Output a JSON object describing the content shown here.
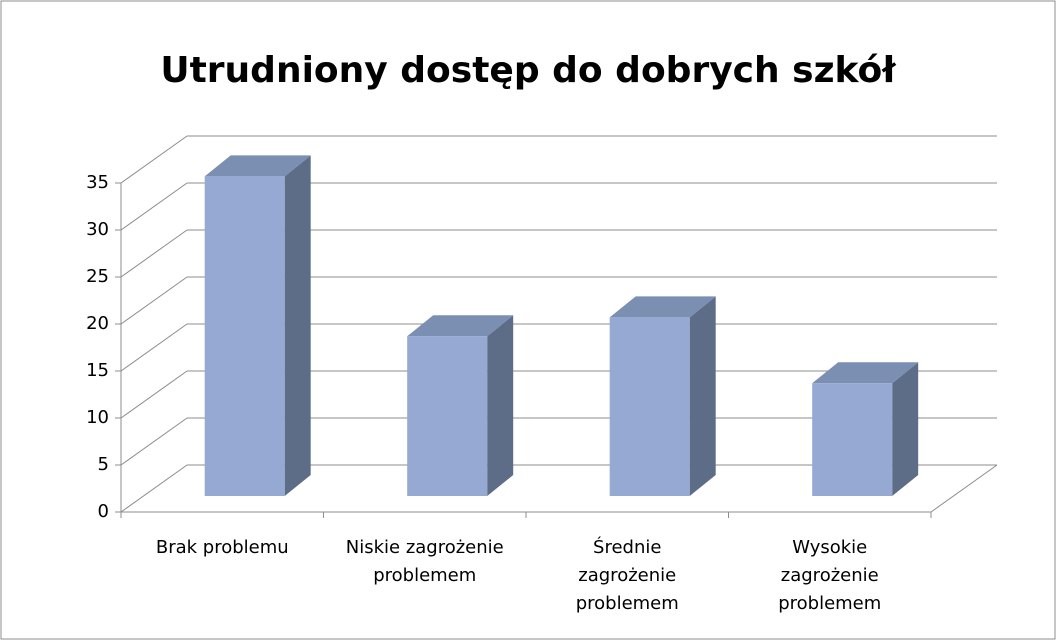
{
  "chart_data": {
    "type": "bar3d",
    "title": "Utrudniony dostęp do dobrych szkół",
    "categories": [
      "Brak problemu",
      "Niskie zagrożenie problemem",
      "Średnie zagrożenie problemem",
      "Wysokie zagrożenie problemem"
    ],
    "values": [
      34,
      17,
      19,
      12
    ],
    "color": "#95a9d3",
    "ylim": [
      0,
      35
    ],
    "yticks": [
      0,
      5,
      10,
      15,
      20,
      25,
      30,
      35
    ],
    "grid": true
  }
}
